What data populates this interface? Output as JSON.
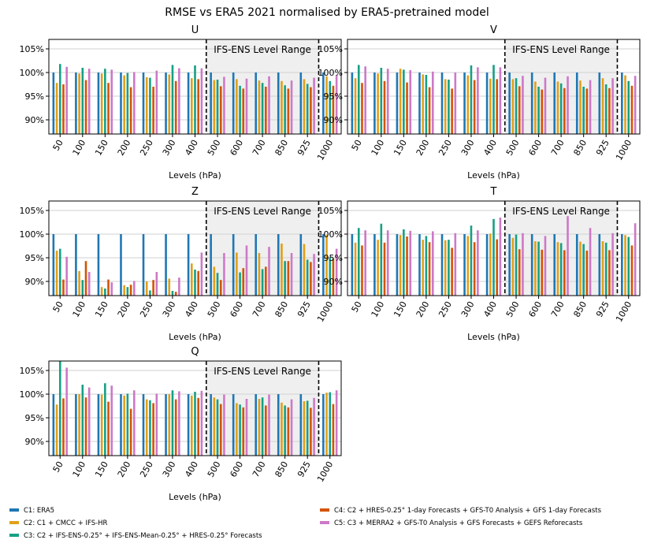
{
  "figure": {
    "title": "RMSE vs ERA5 2021 normalised by ERA5-pretrained model",
    "range_label": "IFS-ENS Level Range"
  },
  "colors": {
    "series": [
      "#1f77b4",
      "#e0a01a",
      "#16a085",
      "#d35400",
      "#cc79c7"
    ],
    "band": "#efefef",
    "grid": "#d0d0d0"
  },
  "chart_data": [
    {
      "type": "bar",
      "title": "U",
      "xlabel": "Levels (hPa)",
      "ylabel": "",
      "categories": [
        "50",
        "100",
        "150",
        "200",
        "250",
        "300",
        "400",
        "500",
        "600",
        "700",
        "850",
        "925",
        "1000"
      ],
      "ylim": [
        87,
        107
      ],
      "yticks": [
        90,
        95,
        100,
        105
      ],
      "ytick_labels": [
        "90%",
        "95%",
        "100%",
        "105%"
      ],
      "shaded_range": [
        "400",
        "925"
      ],
      "grid": true,
      "series": [
        {
          "name": "C1: ERA5",
          "values": [
            100,
            100,
            100,
            100,
            100,
            100,
            100,
            100,
            100,
            100,
            100,
            100,
            100
          ]
        },
        {
          "name": "C2: C1 + CMCC + IFS-HR",
          "values": [
            97.8,
            99.8,
            99.8,
            99.4,
            99,
            99.6,
            98.8,
            98.4,
            98.6,
            98.3,
            98.2,
            98.6,
            99.2
          ]
        },
        {
          "name": "C3: C2 + IFS-ENS-0.25° + IFS-ENS-Mean-0.25° + HRES-0.25° Forecasts",
          "values": [
            101.8,
            101,
            100.8,
            99.9,
            98.9,
            101.6,
            101.5,
            98.5,
            97.2,
            97.8,
            97.3,
            97.6,
            98.2
          ]
        },
        {
          "name": "C4: C2 + HRES-0.25° 1-day Forecasts + GFS-T0 Analysis + GFS 1-day Forecasts",
          "values": [
            97.5,
            98.4,
            97.8,
            96.9,
            97,
            98.2,
            98.6,
            97.1,
            96.6,
            97,
            96.6,
            96.9,
            97.2
          ]
        },
        {
          "name": "C5: C3 + MERRA2 + GFS-T0 Analysis + GFS Forecasts + GEFS Reforecasts",
          "values": [
            101.2,
            100.8,
            100.6,
            100.1,
            100.4,
            100.9,
            100.9,
            99.1,
            98.7,
            99.2,
            98.3,
            98.9,
            99.5
          ]
        }
      ]
    },
    {
      "type": "bar",
      "title": "V",
      "xlabel": "Levels (hPa)",
      "ylabel": "",
      "categories": [
        "50",
        "100",
        "150",
        "200",
        "250",
        "300",
        "400",
        "500",
        "600",
        "700",
        "850",
        "925",
        "1000"
      ],
      "ylim": [
        87,
        107
      ],
      "yticks": [
        90,
        95,
        100,
        105
      ],
      "ytick_labels": [
        "90%",
        "95%",
        "100%",
        "105%"
      ],
      "shaded_range": [
        "400",
        "925"
      ],
      "grid": true,
      "series": [
        {
          "name": "C1: ERA5",
          "values": [
            100,
            100,
            100,
            100,
            100,
            100,
            100,
            100,
            100,
            100,
            100,
            100,
            100
          ]
        },
        {
          "name": "C2: C1 + CMCC + IFS-HR",
          "values": [
            98.8,
            99.8,
            100.8,
            99.6,
            98.6,
            99.4,
            98.7,
            98.6,
            98.1,
            98.1,
            98.3,
            98.8,
            99.4
          ]
        },
        {
          "name": "C3: C2 + IFS-ENS-0.25° + IFS-ENS-Mean-0.25° + HRES-0.25° Forecasts",
          "values": [
            101.6,
            101,
            100.6,
            99.5,
            98.5,
            101.5,
            101.6,
            98.8,
            97,
            97.7,
            97,
            97.5,
            98.2
          ]
        },
        {
          "name": "C4: C2 + HRES-0.25° 1-day Forecasts + GFS-T0 Analysis + GFS 1-day Forecasts",
          "values": [
            97.8,
            98.2,
            97.9,
            96.9,
            96.6,
            98.4,
            98.6,
            97.1,
            96.4,
            96.7,
            96.6,
            96.7,
            97.2
          ]
        },
        {
          "name": "C5: C3 + MERRA2 + GFS-T0 Analysis + GFS Forecasts + GEFS Reforecasts",
          "values": [
            101.3,
            100.8,
            100.5,
            100.2,
            100,
            101.1,
            101.1,
            99.3,
            98.9,
            99.2,
            98.4,
            98.8,
            99.3
          ]
        }
      ]
    },
    {
      "type": "bar",
      "title": "Z",
      "xlabel": "Levels (hPa)",
      "ylabel": "",
      "categories": [
        "50",
        "100",
        "150",
        "200",
        "250",
        "300",
        "400",
        "500",
        "600",
        "700",
        "850",
        "925",
        "1000"
      ],
      "ylim": [
        87,
        107
      ],
      "yticks": [
        90,
        95,
        100,
        105
      ],
      "ytick_labels": [
        "90%",
        "95%",
        "100%",
        "105%"
      ],
      "shaded_range": [
        "400",
        "925"
      ],
      "grid": true,
      "series": [
        {
          "name": "C1: ERA5",
          "values": [
            100,
            100,
            100,
            100,
            100,
            100,
            100,
            100,
            100,
            100,
            100,
            100,
            100
          ]
        },
        {
          "name": "C2: C1 + CMCC + IFS-HR",
          "values": [
            96.5,
            92.2,
            88.8,
            89.2,
            90,
            90.6,
            93.8,
            93.1,
            96.1,
            96,
            98,
            97.9,
            99.8
          ]
        },
        {
          "name": "C3: C2 + IFS-ENS-0.25° + IFS-ENS-Mean-0.25° + HRES-0.25° Forecasts",
          "values": [
            96.9,
            90.3,
            88.5,
            88.8,
            88.1,
            88,
            92.5,
            91.8,
            91.9,
            92.6,
            94.3,
            94.6,
            95.1
          ]
        },
        {
          "name": "C4: C2 + HRES-0.25° 1-day Forecasts + GFS-T0 Analysis + GFS 1-day Forecasts",
          "values": [
            90.4,
            94.3,
            90.4,
            89.3,
            90.3,
            87.8,
            92.2,
            90.3,
            92.8,
            93.1,
            94.3,
            94.1,
            94.8
          ]
        },
        {
          "name": "C5: C3 + MERRA2 + GFS-T0 Analysis + GFS Forecasts + GEFS Reforecasts",
          "values": [
            95.2,
            92,
            89.8,
            90.1,
            92,
            90.8,
            96.1,
            96,
            97.6,
            97.3,
            96,
            95.8,
            96.9
          ]
        }
      ]
    },
    {
      "type": "bar",
      "title": "T",
      "xlabel": "Levels (hPa)",
      "ylabel": "",
      "categories": [
        "50",
        "100",
        "150",
        "200",
        "250",
        "300",
        "400",
        "500",
        "600",
        "700",
        "850",
        "925",
        "1000"
      ],
      "ylim": [
        87,
        107
      ],
      "yticks": [
        90,
        95,
        100,
        105
      ],
      "ytick_labels": [
        "90%",
        "95%",
        "100%",
        "105%"
      ],
      "shaded_range": [
        "400",
        "925"
      ],
      "grid": true,
      "series": [
        {
          "name": "C1: ERA5",
          "values": [
            100,
            100,
            100,
            100,
            100,
            100,
            100,
            100,
            100,
            100,
            100,
            100,
            100
          ]
        },
        {
          "name": "C2: C1 + CMCC + IFS-HR",
          "values": [
            98.2,
            98.8,
            99.8,
            98.8,
            98.7,
            99.6,
            100.1,
            99.2,
            98.5,
            98.3,
            98.4,
            98.5,
            99.8
          ]
        },
        {
          "name": "C3: C2 + IFS-ENS-0.25° + IFS-ENS-Mean-0.25° + HRES-0.25° Forecasts",
          "values": [
            101.3,
            102.2,
            101,
            99.6,
            98.8,
            101.8,
            103.2,
            99.9,
            98.4,
            98.1,
            97.9,
            98.2,
            99.4
          ]
        },
        {
          "name": "C4: C2 + HRES-0.25° 1-day Forecasts + GFS-T0 Analysis + GFS 1-day Forecasts",
          "values": [
            97.6,
            98.2,
            99.5,
            98.3,
            97.1,
            98.3,
            98.9,
            96.8,
            96.7,
            96.6,
            96.5,
            96.6,
            97.6
          ]
        },
        {
          "name": "C5: C3 + MERRA2 + GFS-T0 Analysis + GFS Forecasts + GEFS Reforecasts",
          "values": [
            100.8,
            100.8,
            100.7,
            100.6,
            100.2,
            100.8,
            103.5,
            100.2,
            99.6,
            103.8,
            101.3,
            100.2,
            102.3
          ]
        }
      ]
    },
    {
      "type": "bar",
      "title": "Q",
      "xlabel": "Levels (hPa)",
      "ylabel": "",
      "categories": [
        "50",
        "100",
        "150",
        "200",
        "250",
        "300",
        "400",
        "500",
        "600",
        "700",
        "850",
        "925",
        "1000"
      ],
      "ylim": [
        87,
        107
      ],
      "yticks": [
        90,
        95,
        100,
        105
      ],
      "ytick_labels": [
        "90%",
        "95%",
        "100%",
        "105%"
      ],
      "shaded_range": [
        "400",
        "925"
      ],
      "grid": true,
      "series": [
        {
          "name": "C1: ERA5",
          "values": [
            100,
            100,
            100,
            100,
            100,
            100,
            100,
            100,
            100,
            100,
            100,
            100,
            100
          ]
        },
        {
          "name": "C2: C1 + CMCC + IFS-HR",
          "values": [
            97.8,
            100,
            99.9,
            99.7,
            98.9,
            100,
            99.7,
            99.3,
            98.1,
            99,
            98.2,
            98.5,
            100.3
          ]
        },
        {
          "name": "C3: C2 + IFS-ENS-0.25° + IFS-ENS-Mean-0.25° + HRES-0.25° Forecasts",
          "values": [
            107.2,
            102,
            102.3,
            100.1,
            98.7,
            100.8,
            100.5,
            98.9,
            97.8,
            99.3,
            97.6,
            98.6,
            100.4
          ]
        },
        {
          "name": "C4: C2 + HRES-0.25° 1-day Forecasts + GFS-T0 Analysis + GFS 1-day Forecasts",
          "values": [
            99.1,
            99.3,
            98.4,
            96.9,
            98.1,
            98.9,
            99.2,
            97.9,
            97.2,
            97.6,
            97.2,
            97.1,
            97.9
          ]
        },
        {
          "name": "C5: C3 + MERRA2 + GFS-T0 Analysis + GFS Forecasts + GEFS Reforecasts",
          "values": [
            105.6,
            101.4,
            101.8,
            100.8,
            100.1,
            100.6,
            100.7,
            99.9,
            99,
            99.9,
            98.9,
            99.2,
            100.8
          ]
        }
      ]
    }
  ]
}
